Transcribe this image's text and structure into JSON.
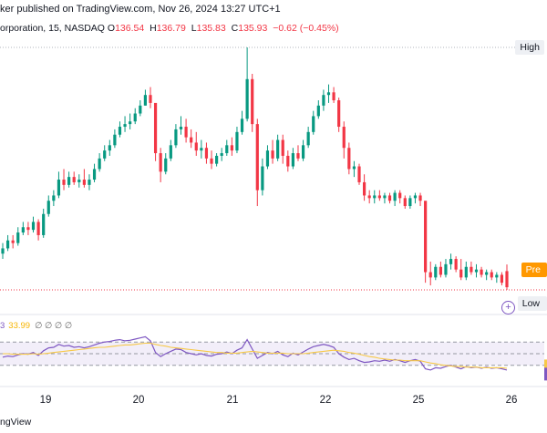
{
  "header": {
    "published": "ker published on TradingView.com, Nov 26, 2024 13:27 UTC+1",
    "symbol": "orporation, 15, NASDAQ",
    "o_label": "O",
    "o_value": "136.54",
    "h_label": "H",
    "h_value": "136.79",
    "l_label": "L",
    "l_value": "135.83",
    "c_label": "C",
    "c_value": "135.93",
    "change": "−0.62 (−0.45%)"
  },
  "price_tags": {
    "high": "High",
    "low": "Low",
    "pre": "Pre"
  },
  "rsi_legend": {
    "value_a": "3",
    "value_b": "33.99",
    "na": "∅ ∅ ∅ ∅"
  },
  "footer": {
    "brand": "ngView"
  },
  "colors": {
    "up": "#089981",
    "down": "#f23645",
    "rsi": "#7e57c2",
    "rsi_ma": "#f7c948",
    "band": "#7e57c2"
  },
  "chart_data": [
    {
      "type": "candlestick",
      "x_ticks": [
        "19",
        "20",
        "21",
        "22",
        "25",
        "26"
      ],
      "ylim": [
        135.83,
        145.0
      ],
      "series": [
        {
          "name": "",
          "values": [
            [
              137.2,
              137.6,
              137.0,
              137.4
            ],
            [
              137.4,
              137.9,
              137.3,
              137.7
            ],
            [
              137.7,
              137.9,
              137.4,
              137.6
            ],
            [
              137.6,
              138.2,
              137.5,
              138.0
            ],
            [
              138.0,
              138.4,
              137.9,
              138.2
            ],
            [
              138.2,
              138.4,
              137.9,
              138.1
            ],
            [
              138.1,
              138.6,
              138.0,
              138.4
            ],
            [
              138.4,
              138.5,
              137.7,
              137.9
            ],
            [
              137.9,
              138.9,
              137.8,
              138.7
            ],
            [
              138.7,
              139.4,
              138.6,
              139.2
            ],
            [
              139.2,
              139.6,
              139.0,
              139.4
            ],
            [
              139.4,
              140.3,
              139.3,
              140.0
            ],
            [
              140.0,
              140.4,
              139.6,
              139.8
            ],
            [
              139.8,
              140.3,
              139.7,
              140.1
            ],
            [
              140.1,
              140.3,
              139.8,
              139.9
            ],
            [
              139.9,
              140.2,
              139.7,
              140.0
            ],
            [
              140.0,
              140.4,
              139.7,
              139.8
            ],
            [
              139.8,
              140.2,
              139.6,
              140.0
            ],
            [
              140.0,
              140.6,
              139.9,
              140.4
            ],
            [
              140.4,
              141.0,
              140.3,
              140.8
            ],
            [
              140.8,
              141.3,
              140.7,
              141.1
            ],
            [
              141.1,
              141.5,
              140.9,
              141.3
            ],
            [
              141.3,
              141.9,
              141.2,
              141.7
            ],
            [
              141.7,
              142.2,
              141.6,
              142.0
            ],
            [
              142.0,
              142.4,
              141.8,
              142.1
            ],
            [
              142.1,
              142.5,
              141.9,
              142.2
            ],
            [
              142.2,
              142.7,
              142.1,
              142.5
            ],
            [
              142.5,
              143.0,
              142.4,
              142.8
            ],
            [
              142.8,
              143.4,
              142.8,
              143.2
            ],
            [
              143.2,
              143.5,
              142.7,
              142.9
            ],
            [
              142.9,
              141.3,
              140.7,
              141.0
            ],
            [
              141.0,
              141.2,
              139.9,
              140.3
            ],
            [
              140.3,
              141.0,
              140.2,
              140.8
            ],
            [
              140.8,
              141.5,
              140.7,
              141.3
            ],
            [
              141.3,
              142.1,
              141.2,
              141.9
            ],
            [
              141.9,
              142.4,
              141.7,
              142.0
            ],
            [
              142.0,
              142.3,
              141.4,
              141.6
            ],
            [
              141.6,
              141.9,
              141.2,
              141.4
            ],
            [
              141.4,
              141.8,
              140.9,
              141.1
            ],
            [
              141.1,
              141.5,
              140.8,
              141.2
            ],
            [
              141.2,
              141.4,
              140.6,
              140.8
            ],
            [
              140.8,
              141.1,
              140.4,
              140.6
            ],
            [
              140.6,
              141.0,
              140.5,
              140.9
            ],
            [
              140.9,
              141.2,
              140.7,
              141.0
            ],
            [
              141.0,
              141.5,
              140.9,
              141.3
            ],
            [
              141.3,
              141.6,
              140.9,
              141.1
            ],
            [
              141.1,
              142.0,
              141.0,
              141.8
            ],
            [
              141.8,
              142.6,
              141.7,
              142.3
            ],
            [
              142.3,
              145.0,
              142.2,
              143.8
            ],
            [
              143.8,
              144.0,
              141.8,
              142.1
            ],
            [
              142.1,
              142.3,
              139.0,
              139.6
            ],
            [
              139.6,
              140.8,
              139.4,
              140.5
            ],
            [
              140.5,
              141.3,
              140.4,
              141.1
            ],
            [
              141.1,
              141.5,
              140.6,
              140.8
            ],
            [
              140.8,
              141.7,
              140.7,
              141.5
            ],
            [
              141.5,
              141.7,
              140.6,
              140.9
            ],
            [
              140.9,
              141.1,
              140.3,
              140.5
            ],
            [
              140.5,
              141.2,
              140.4,
              141.0
            ],
            [
              141.0,
              141.3,
              140.7,
              140.8
            ],
            [
              140.8,
              141.5,
              140.7,
              141.3
            ],
            [
              141.3,
              142.0,
              141.2,
              141.8
            ],
            [
              141.8,
              142.6,
              141.7,
              142.4
            ],
            [
              142.4,
              143.0,
              142.3,
              142.8
            ],
            [
              142.8,
              143.4,
              142.6,
              143.2
            ],
            [
              143.2,
              143.6,
              142.9,
              143.3
            ],
            [
              143.3,
              143.5,
              142.9,
              143.0
            ],
            [
              143.0,
              143.1,
              141.8,
              142.0
            ],
            [
              142.0,
              142.2,
              140.8,
              141.2
            ],
            [
              141.2,
              141.4,
              140.2,
              140.4
            ],
            [
              140.4,
              140.7,
              140.1,
              140.5
            ],
            [
              140.5,
              140.6,
              139.8,
              139.9
            ],
            [
              139.9,
              140.2,
              139.2,
              139.4
            ],
            [
              139.4,
              139.6,
              139.1,
              139.3
            ],
            [
              139.3,
              139.6,
              139.1,
              139.4
            ],
            [
              139.4,
              139.6,
              139.2,
              139.3
            ],
            [
              139.3,
              139.5,
              139.1,
              139.4
            ],
            [
              139.4,
              139.5,
              139.1,
              139.2
            ],
            [
              139.2,
              139.6,
              139.0,
              139.5
            ],
            [
              139.5,
              139.6,
              139.1,
              139.3
            ],
            [
              139.3,
              139.4,
              138.9,
              139.0
            ],
            [
              139.0,
              139.4,
              138.9,
              139.3
            ],
            [
              139.3,
              139.5,
              139.1,
              139.4
            ],
            [
              139.4,
              139.5,
              139.0,
              139.2
            ],
            [
              139.2,
              137.0,
              136.1,
              136.5
            ],
            [
              136.5,
              136.9,
              136.0,
              136.3
            ],
            [
              136.3,
              136.8,
              136.2,
              136.7
            ],
            [
              136.7,
              136.9,
              136.3,
              136.4
            ],
            [
              136.4,
              137.0,
              136.3,
              136.8
            ],
            [
              136.8,
              137.2,
              136.6,
              137.0
            ],
            [
              137.0,
              137.1,
              136.5,
              136.6
            ],
            [
              136.6,
              137.0,
              136.2,
              136.3
            ],
            [
              136.3,
              136.9,
              136.2,
              136.7
            ],
            [
              136.7,
              136.9,
              136.4,
              136.5
            ],
            [
              136.5,
              136.8,
              136.3,
              136.6
            ],
            [
              136.6,
              136.7,
              136.3,
              136.4
            ],
            [
              136.4,
              136.6,
              136.2,
              136.5
            ],
            [
              136.5,
              136.6,
              136.2,
              136.3
            ],
            [
              136.3,
              136.5,
              136.1,
              136.4
            ],
            [
              136.4,
              136.5,
              136.0,
              136.1
            ],
            [
              136.54,
              136.79,
              135.83,
              135.93
            ]
          ]
        }
      ]
    },
    {
      "type": "line",
      "series": [
        {
          "name": "",
          "values": [
            44,
            46,
            45,
            48,
            50,
            49,
            52,
            47,
            55,
            60,
            61,
            66,
            63,
            64,
            61,
            62,
            60,
            62,
            65,
            68,
            70,
            71,
            73,
            74,
            72,
            73,
            75,
            77,
            79,
            72,
            52,
            45,
            50,
            54,
            58,
            57,
            52,
            50,
            48,
            50,
            47,
            46,
            49,
            50,
            53,
            50,
            56,
            60,
            74,
            58,
            42,
            47,
            52,
            50,
            54,
            48,
            45,
            51,
            48,
            53,
            58,
            62,
            64,
            66,
            64,
            61,
            50,
            44,
            40,
            42,
            38,
            35,
            36,
            38,
            37,
            39,
            37,
            40,
            38,
            35,
            38,
            40,
            37,
            24,
            22,
            26,
            25,
            28,
            30,
            27,
            24,
            28,
            26,
            27,
            25,
            27,
            25,
            26,
            24,
            22
          ]
        },
        {
          "name": "",
          "values": [
            50,
            50,
            49,
            49,
            49,
            49,
            50,
            49,
            50,
            51,
            52,
            53,
            54,
            55,
            56,
            57,
            58,
            59,
            60,
            61,
            61,
            62,
            63,
            64,
            65,
            65,
            66,
            67,
            68,
            68,
            66,
            64,
            63,
            61,
            60,
            59,
            58,
            57,
            56,
            55,
            54,
            53,
            52,
            52,
            51,
            51,
            51,
            52,
            53,
            54,
            53,
            52,
            51,
            51,
            51,
            51,
            50,
            50,
            50,
            50,
            51,
            52,
            53,
            54,
            55,
            56,
            55,
            54,
            52,
            51,
            49,
            47,
            45,
            44,
            42,
            41,
            40,
            39,
            39,
            38,
            38,
            38,
            38,
            36,
            34,
            33,
            31,
            30,
            29,
            28,
            28,
            27,
            27,
            27,
            26,
            26,
            26,
            26,
            26,
            25
          ]
        }
      ],
      "hlines": [
        70,
        50,
        30
      ]
    }
  ]
}
